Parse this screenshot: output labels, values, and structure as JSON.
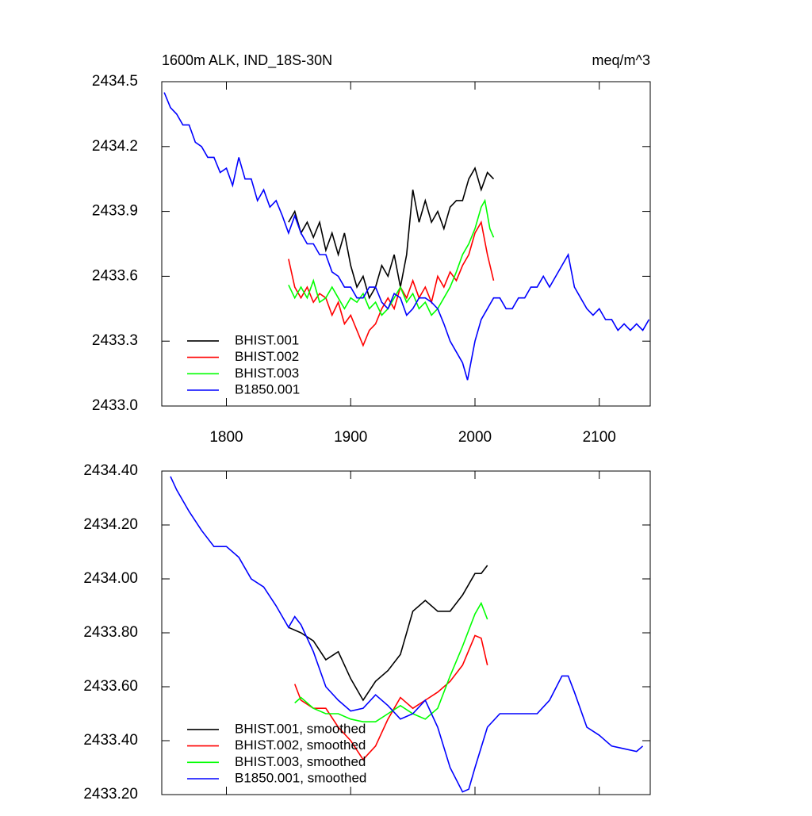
{
  "chart_data": [
    {
      "type": "line",
      "title": "1600m ALK, IND_18S-30N",
      "units_label": "meq/m^3",
      "xlim": [
        1748,
        2141
      ],
      "xticks": [
        1800,
        1900,
        2000,
        2100
      ],
      "ylim": [
        2433,
        2434.5
      ],
      "yticks": [
        {
          "value": 2433,
          "label": "2433.0"
        },
        2433.3,
        2433.6,
        2433.9,
        2434.2,
        2434.5
      ],
      "legend_position": "lower left",
      "series": [
        {
          "name": "BHIST.001",
          "color": "#000000",
          "x": [
            1850,
            1855,
            1860,
            1865,
            1870,
            1875,
            1880,
            1885,
            1890,
            1895,
            1900,
            1905,
            1910,
            1915,
            1920,
            1925,
            1930,
            1935,
            1940,
            1945,
            1950,
            1955,
            1960,
            1965,
            1970,
            1975,
            1980,
            1985,
            1990,
            1995,
            2000,
            2005,
            2010,
            2015
          ],
          "values": [
            2433.85,
            2433.9,
            2433.8,
            2433.85,
            2433.78,
            2433.85,
            2433.72,
            2433.8,
            2433.7,
            2433.8,
            2433.65,
            2433.55,
            2433.6,
            2433.5,
            2433.55,
            2433.65,
            2433.6,
            2433.7,
            2433.55,
            2433.7,
            2434.0,
            2433.85,
            2433.95,
            2433.85,
            2433.9,
            2433.82,
            2433.92,
            2433.95,
            2433.95,
            2434.05,
            2434.1,
            2434.0,
            2434.08,
            2434.05
          ]
        },
        {
          "name": "BHIST.002",
          "color": "#ff0000",
          "x": [
            1850,
            1855,
            1860,
            1865,
            1870,
            1875,
            1880,
            1885,
            1890,
            1895,
            1900,
            1905,
            1910,
            1915,
            1920,
            1925,
            1930,
            1935,
            1940,
            1945,
            1950,
            1955,
            1960,
            1965,
            1970,
            1975,
            1980,
            1985,
            1990,
            1995,
            2000,
            2005,
            2010,
            2015
          ],
          "values": [
            2433.68,
            2433.55,
            2433.5,
            2433.55,
            2433.48,
            2433.52,
            2433.5,
            2433.42,
            2433.48,
            2433.38,
            2433.42,
            2433.35,
            2433.28,
            2433.35,
            2433.38,
            2433.45,
            2433.5,
            2433.45,
            2433.55,
            2433.5,
            2433.58,
            2433.5,
            2433.55,
            2433.48,
            2433.6,
            2433.55,
            2433.62,
            2433.58,
            2433.65,
            2433.7,
            2433.8,
            2433.85,
            2433.7,
            2433.58
          ]
        },
        {
          "name": "BHIST.003",
          "color": "#00ff00",
          "x": [
            1850,
            1855,
            1860,
            1865,
            1870,
            1875,
            1880,
            1885,
            1890,
            1895,
            1900,
            1905,
            1910,
            1915,
            1920,
            1925,
            1930,
            1935,
            1940,
            1945,
            1950,
            1955,
            1960,
            1965,
            1970,
            1975,
            1980,
            1985,
            1990,
            1995,
            2000,
            2005,
            2008,
            2012,
            2015
          ],
          "values": [
            2433.56,
            2433.5,
            2433.55,
            2433.5,
            2433.58,
            2433.48,
            2433.5,
            2433.55,
            2433.5,
            2433.45,
            2433.5,
            2433.48,
            2433.52,
            2433.45,
            2433.48,
            2433.42,
            2433.45,
            2433.5,
            2433.55,
            2433.48,
            2433.52,
            2433.45,
            2433.48,
            2433.42,
            2433.45,
            2433.5,
            2433.55,
            2433.62,
            2433.7,
            2433.75,
            2433.82,
            2433.92,
            2433.95,
            2433.82,
            2433.78
          ]
        },
        {
          "name": "B1850.001",
          "color": "#0000ff",
          "x": [
            1750,
            1755,
            1760,
            1765,
            1770,
            1775,
            1780,
            1785,
            1790,
            1795,
            1800,
            1805,
            1810,
            1815,
            1820,
            1825,
            1830,
            1835,
            1840,
            1845,
            1850,
            1855,
            1860,
            1865,
            1870,
            1875,
            1880,
            1885,
            1890,
            1895,
            1900,
            1905,
            1910,
            1915,
            1920,
            1925,
            1930,
            1935,
            1940,
            1945,
            1950,
            1955,
            1960,
            1965,
            1970,
            1975,
            1980,
            1985,
            1990,
            1994,
            2000,
            2005,
            2010,
            2015,
            2020,
            2025,
            2030,
            2035,
            2040,
            2045,
            2050,
            2055,
            2060,
            2065,
            2070,
            2075,
            2080,
            2085,
            2090,
            2095,
            2100,
            2105,
            2110,
            2115,
            2120,
            2125,
            2130,
            2135,
            2140
          ],
          "values": [
            2434.45,
            2434.38,
            2434.35,
            2434.3,
            2434.3,
            2434.22,
            2434.2,
            2434.15,
            2434.15,
            2434.08,
            2434.1,
            2434.02,
            2434.15,
            2434.05,
            2434.05,
            2433.95,
            2434.0,
            2433.92,
            2433.95,
            2433.88,
            2433.8,
            2433.88,
            2433.8,
            2433.75,
            2433.75,
            2433.7,
            2433.7,
            2433.62,
            2433.6,
            2433.55,
            2433.55,
            2433.5,
            2433.5,
            2433.55,
            2433.55,
            2433.48,
            2433.45,
            2433.52,
            2433.5,
            2433.42,
            2433.45,
            2433.5,
            2433.5,
            2433.48,
            2433.45,
            2433.38,
            2433.3,
            2433.25,
            2433.2,
            2433.12,
            2433.3,
            2433.4,
            2433.45,
            2433.5,
            2433.5,
            2433.45,
            2433.45,
            2433.5,
            2433.5,
            2433.55,
            2433.55,
            2433.6,
            2433.55,
            2433.6,
            2433.65,
            2433.7,
            2433.55,
            2433.5,
            2433.45,
            2433.42,
            2433.45,
            2433.4,
            2433.4,
            2433.35,
            2433.38,
            2433.35,
            2433.38,
            2433.35,
            2433.4
          ]
        }
      ]
    },
    {
      "type": "line",
      "xlim": [
        1748,
        2141
      ],
      "ylim": [
        2433.2,
        2434.4
      ],
      "yticks": [
        {
          "value": 2433.2,
          "label": "2433.20"
        },
        {
          "value": 2433.4,
          "label": "2433.40"
        },
        {
          "value": 2433.6,
          "label": "2433.60"
        },
        {
          "value": 2433.8,
          "label": "2433.80"
        },
        {
          "value": 2434.0,
          "label": "2434.00"
        },
        {
          "value": 2434.2,
          "label": "2434.20"
        },
        {
          "value": 2434.4,
          "label": "2434.40"
        }
      ],
      "legend_position": "lower left",
      "series": [
        {
          "name": "BHIST.001, smoothed",
          "color": "#000000",
          "x": [
            1850,
            1860,
            1870,
            1880,
            1890,
            1900,
            1910,
            1920,
            1930,
            1940,
            1950,
            1960,
            1970,
            1980,
            1990,
            2000,
            2005,
            2010
          ],
          "values": [
            2433.82,
            2433.8,
            2433.77,
            2433.7,
            2433.73,
            2433.63,
            2433.55,
            2433.62,
            2433.66,
            2433.72,
            2433.88,
            2433.92,
            2433.88,
            2433.88,
            2433.94,
            2434.02,
            2434.02,
            2434.05
          ]
        },
        {
          "name": "BHIST.002, smoothed",
          "color": "#ff0000",
          "x": [
            1855,
            1860,
            1870,
            1880,
            1890,
            1900,
            1910,
            1920,
            1930,
            1940,
            1950,
            1960,
            1970,
            1980,
            1990,
            2000,
            2005,
            2010
          ],
          "values": [
            2433.61,
            2433.55,
            2433.52,
            2433.52,
            2433.45,
            2433.4,
            2433.33,
            2433.38,
            2433.48,
            2433.56,
            2433.52,
            2433.55,
            2433.58,
            2433.62,
            2433.68,
            2433.79,
            2433.78,
            2433.68
          ]
        },
        {
          "name": "BHIST.003, smoothed",
          "color": "#00ff00",
          "x": [
            1855,
            1860,
            1870,
            1880,
            1890,
            1900,
            1910,
            1920,
            1930,
            1940,
            1950,
            1960,
            1970,
            1980,
            1990,
            2000,
            2005,
            2010
          ],
          "values": [
            2433.54,
            2433.56,
            2433.52,
            2433.5,
            2433.5,
            2433.48,
            2433.47,
            2433.47,
            2433.5,
            2433.53,
            2433.5,
            2433.48,
            2433.52,
            2433.64,
            2433.75,
            2433.87,
            2433.91,
            2433.85
          ]
        },
        {
          "name": "B1850.001, smoothed",
          "color": "#0000ff",
          "x": [
            1755,
            1760,
            1770,
            1780,
            1790,
            1800,
            1810,
            1820,
            1830,
            1840,
            1850,
            1855,
            1860,
            1870,
            1880,
            1890,
            1900,
            1910,
            1920,
            1930,
            1940,
            1950,
            1960,
            1970,
            1980,
            1990,
            1995,
            2000,
            2010,
            2020,
            2030,
            2040,
            2050,
            2060,
            2070,
            2075,
            2080,
            2090,
            2100,
            2110,
            2120,
            2130,
            2135
          ],
          "values": [
            2434.38,
            2434.33,
            2434.25,
            2434.18,
            2434.12,
            2434.12,
            2434.08,
            2434.0,
            2433.97,
            2433.9,
            2433.82,
            2433.86,
            2433.83,
            2433.73,
            2433.6,
            2433.55,
            2433.51,
            2433.52,
            2433.57,
            2433.53,
            2433.48,
            2433.5,
            2433.55,
            2433.45,
            2433.3,
            2433.21,
            2433.22,
            2433.3,
            2433.45,
            2433.5,
            2433.5,
            2433.5,
            2433.5,
            2433.55,
            2433.64,
            2433.64,
            2433.58,
            2433.45,
            2433.42,
            2433.38,
            2433.37,
            2433.36,
            2433.38
          ]
        }
      ]
    }
  ]
}
